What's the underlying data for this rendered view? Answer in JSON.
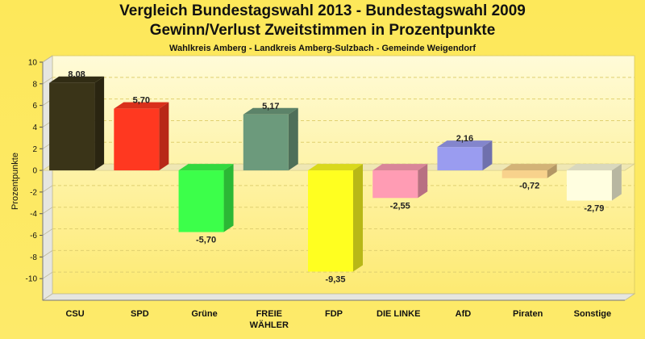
{
  "title": "Vergleich Bundestagswahl 2013 - Bundestagswahl 2009",
  "subtitle": "Gewinn/Verlust Zweitstimmen in Prozentpunkte",
  "subsubtitle": "Wahlkreis Amberg - Landkreis Amberg-Sulzbach - Gemeinde Weigendorf",
  "chart_data": {
    "type": "bar",
    "categories": [
      "CSU",
      "SPD",
      "Grüne",
      "FREIE WÄHLER",
      "FDP",
      "DIE LINKE",
      "AfD",
      "Piraten",
      "Sonstige"
    ],
    "category_lines": [
      [
        "CSU"
      ],
      [
        "SPD"
      ],
      [
        "Grüne"
      ],
      [
        "FREIE",
        "WÄHLER"
      ],
      [
        "FDP"
      ],
      [
        "DIE LINKE"
      ],
      [
        "AfD"
      ],
      [
        "Piraten"
      ],
      [
        "Sonstige"
      ]
    ],
    "values": [
      8.08,
      5.7,
      -5.7,
      5.17,
      -9.35,
      -2.55,
      2.16,
      -0.72,
      -2.79
    ],
    "labels": [
      "8,08",
      "5,70",
      "-5,70",
      "5,17",
      "-9,35",
      "-2,55",
      "2,16",
      "-0,72",
      "-2,79"
    ],
    "colors": [
      "#3a3418",
      "#ff3820",
      "#3cff4a",
      "#6c9a7c",
      "#ffff20",
      "#ff9cb4",
      "#9a9cf0",
      "#f8d28c",
      "#fffee0"
    ],
    "ylabel": "Prozentpunkte",
    "xlabel": "",
    "ylim": [
      -12,
      10
    ],
    "yticks": [
      10,
      8,
      6,
      4,
      2,
      0,
      -2,
      -4,
      -6,
      -8,
      -10
    ],
    "grid": true
  }
}
